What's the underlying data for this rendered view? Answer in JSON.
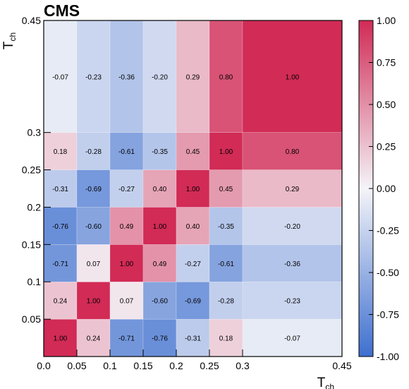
{
  "header": {
    "experiment_label": "CMS"
  },
  "chart_data": {
    "type": "heatmap",
    "title": "",
    "xlabel": "T",
    "xlabel_sub": "ch",
    "ylabel": "T",
    "ylabel_sub": "ch",
    "x_bin_edges": [
      0.0,
      0.05,
      0.1,
      0.15,
      0.2,
      0.25,
      0.3,
      0.45
    ],
    "y_bin_edges": [
      0.0,
      0.05,
      0.1,
      0.15,
      0.2,
      0.25,
      0.3,
      0.45
    ],
    "x_tick_labels": [
      "0.0",
      "0.05",
      "0.1",
      "0.15",
      "0.2",
      "0.25",
      "0.3",
      "0.45"
    ],
    "y_tick_labels": [
      "0.05",
      "0.1",
      "0.15",
      "0.2",
      "0.25",
      "0.3",
      "0.45"
    ],
    "values_by_row_bottom_to_top": [
      [
        1.0,
        0.24,
        -0.71,
        -0.76,
        -0.31,
        0.18,
        -0.07
      ],
      [
        0.24,
        1.0,
        0.07,
        -0.6,
        -0.69,
        -0.28,
        -0.23
      ],
      [
        -0.71,
        0.07,
        1.0,
        0.49,
        -0.27,
        -0.61,
        -0.36
      ],
      [
        -0.76,
        -0.6,
        0.49,
        1.0,
        0.4,
        -0.35,
        -0.2
      ],
      [
        -0.31,
        -0.69,
        -0.27,
        0.4,
        1.0,
        0.45,
        0.29
      ],
      [
        0.18,
        -0.28,
        -0.61,
        -0.35,
        0.45,
        1.0,
        0.8
      ],
      [
        -0.07,
        -0.23,
        -0.36,
        -0.2,
        0.29,
        0.8,
        1.0
      ]
    ],
    "value_labels_by_row_bottom_to_top": [
      [
        "1.00",
        "0.24",
        "-0.71",
        "-0.76",
        "-0.31",
        "0.18",
        "-0.07"
      ],
      [
        "0.24",
        "1.00",
        "0.07",
        "-0.60",
        "-0.69",
        "-0.28",
        "-0.23"
      ],
      [
        "-0.71",
        "0.07",
        "1.00",
        "0.49",
        "-0.27",
        "-0.61",
        "-0.36"
      ],
      [
        "-0.76",
        "-0.60",
        "0.49",
        "1.00",
        "0.40",
        "-0.35",
        "-0.20"
      ],
      [
        "-0.31",
        "-0.69",
        "-0.27",
        "0.40",
        "1.00",
        "0.45",
        "0.29"
      ],
      [
        "0.18",
        "-0.28",
        "-0.61",
        "-0.35",
        "0.45",
        "1.00",
        "0.80"
      ],
      [
        "-0.07",
        "-0.23",
        "-0.36",
        "-0.20",
        "0.29",
        "0.80",
        "1.00"
      ]
    ],
    "colorbar": {
      "range": [
        -1.0,
        1.0
      ],
      "tick_values": [
        1.0,
        0.75,
        0.5,
        0.25,
        0.0,
        -0.25,
        -0.5,
        -0.75,
        -1.0
      ],
      "tick_labels": [
        "1.00",
        "0.75",
        "0.50",
        "0.25",
        "0.00",
        "-0.25",
        "-0.50",
        "-0.75",
        "-1.00"
      ],
      "color_negative": "#3e6fcf",
      "color_zero": "#f4f4f8",
      "color_positive": "#d12b56"
    }
  }
}
